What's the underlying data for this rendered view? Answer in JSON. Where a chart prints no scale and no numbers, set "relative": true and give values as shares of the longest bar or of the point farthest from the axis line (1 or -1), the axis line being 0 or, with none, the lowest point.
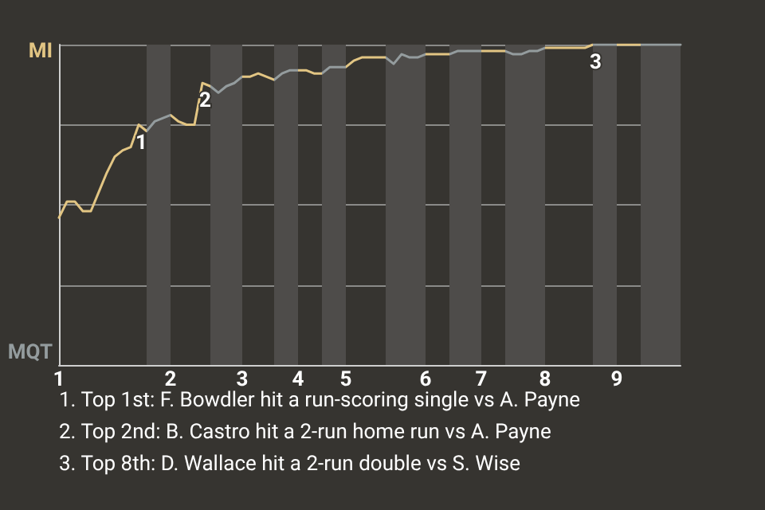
{
  "chart_data": {
    "type": "line",
    "relative": true,
    "categories": [
      "1",
      null,
      null,
      null,
      null,
      null,
      null,
      null,
      null,
      null,
      null,
      null,
      null,
      null,
      "2",
      null,
      null,
      null,
      null,
      null,
      null,
      null,
      null,
      "3",
      null,
      null,
      null,
      null,
      null,
      null,
      "4",
      null,
      null,
      null,
      null,
      null,
      "5",
      null,
      null,
      null,
      null,
      null,
      null,
      null,
      null,
      null,
      "6",
      null,
      null,
      null,
      null,
      null,
      null,
      "7",
      null,
      null,
      null,
      null,
      null,
      null,
      null,
      "8",
      null,
      null,
      null,
      null,
      null,
      null,
      null,
      null,
      "9",
      null,
      null,
      null,
      null,
      null,
      null,
      null,
      null
    ],
    "series": [
      {
        "values": [
          0.46,
          0.51,
          0.51,
          0.48,
          0.48,
          0.54,
          0.6,
          0.65,
          0.67,
          0.68,
          0.75,
          0.73,
          0.76,
          0.77,
          0.78,
          0.76,
          0.75,
          0.75,
          0.88,
          0.87,
          0.85,
          0.87,
          0.88,
          0.9,
          0.9,
          0.91,
          0.9,
          0.89,
          0.91,
          0.92,
          0.92,
          0.92,
          0.91,
          0.91,
          0.93,
          0.93,
          0.93,
          0.95,
          0.96,
          0.96,
          0.96,
          0.96,
          0.94,
          0.97,
          0.96,
          0.96,
          0.97,
          0.97,
          0.97,
          0.97,
          0.98,
          0.98,
          0.98,
          0.98,
          0.98,
          0.98,
          0.98,
          0.97,
          0.97,
          0.98,
          0.98,
          0.99,
          0.99,
          0.99,
          0.99,
          0.99,
          0.99,
          1,
          1,
          1,
          1,
          1,
          1,
          1,
          1,
          1,
          1,
          1,
          1
        ],
        "colors": [
          "#e2c583",
          "#e2c583",
          "#e2c583",
          "#e2c583",
          "#e2c583",
          "#e2c583",
          "#e2c583",
          "#e2c583",
          "#e2c583",
          "#e2c583",
          "#e2c583",
          "#949c9e",
          "#949c9e",
          "#949c9e",
          "#e2c583",
          "#e2c583",
          "#e2c583",
          "#e2c583",
          "#e2c583",
          "#949c9e",
          "#949c9e",
          "#949c9e",
          "#949c9e",
          "#e2c583",
          "#e2c583",
          "#e2c583",
          "#e2c583",
          "#949c9e",
          "#949c9e",
          "#949c9e",
          "#e2c583",
          "#e2c583",
          "#e2c583",
          "#949c9e",
          "#949c9e",
          "#949c9e",
          "#e2c583",
          "#e2c583",
          "#e2c583",
          "#e2c583",
          "#e2c583",
          "#949c9e",
          "#949c9e",
          "#949c9e",
          "#949c9e",
          "#949c9e",
          "#e2c583",
          "#e2c583",
          "#e2c583",
          "#949c9e",
          "#949c9e",
          "#949c9e",
          "#949c9e",
          "#e2c583",
          "#e2c583",
          "#e2c583",
          "#949c9e",
          "#949c9e",
          "#949c9e",
          "#949c9e",
          "#949c9e",
          "#e2c583",
          "#e2c583",
          "#e2c583",
          "#e2c583",
          "#e2c583",
          "#e2c583",
          "#949c9e",
          "#949c9e",
          "#949c9e",
          "#e2c583",
          "#e2c583",
          "#e2c583",
          "#949c9e",
          "#949c9e",
          "#949c9e",
          "#949c9e",
          "#949c9e",
          "#949c9e"
        ]
      }
    ],
    "annotations": [
      "MI",
      "MQT",
      {
        "text": "1",
        "y": 0.75
      },
      {
        "text": "2",
        "y": 0.88
      },
      {
        "text": "3",
        "y": 1
      },
      "1. Top 1st: F. Bowdler hit a run-scoring single vs A. Payne",
      "2. Top 2nd: B. Castro hit a 2-run home run vs A. Payne",
      "3. Top 8th: D. Wallace hit a 2-run double vs S. Wise"
    ],
    "grid": "y",
    "marker": "none",
    "line_style": "solid"
  }
}
